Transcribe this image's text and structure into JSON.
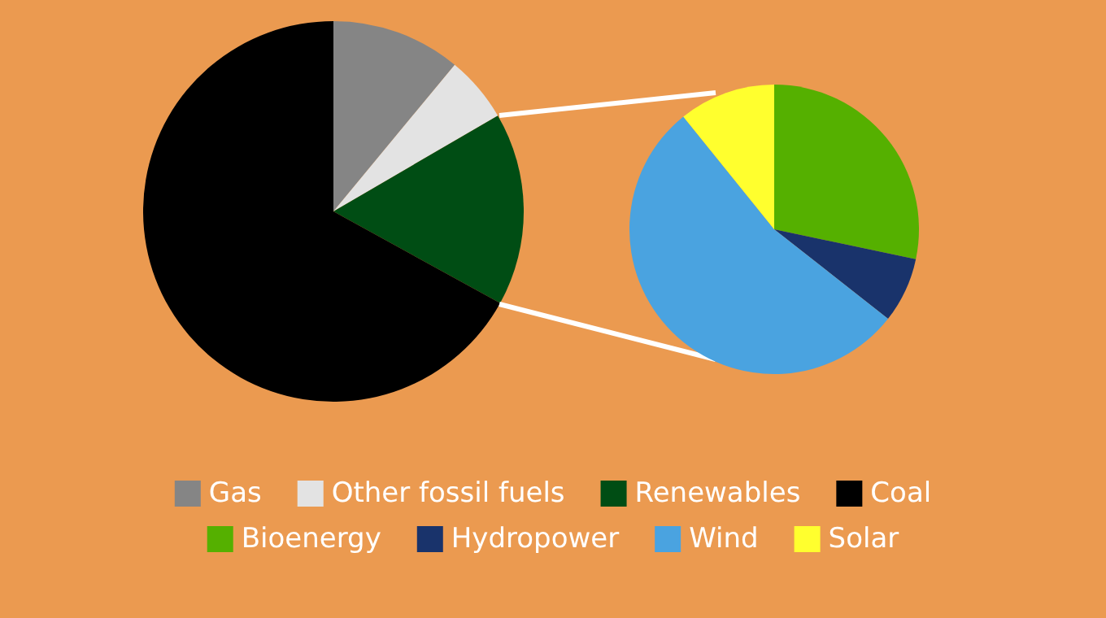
{
  "chart_data": [
    {
      "type": "pie",
      "categories": [
        "Gas",
        "Other fossil fuels",
        "Renewables",
        "Coal"
      ],
      "values": [
        11,
        5.6,
        16.4,
        67
      ],
      "colors": [
        "#858585",
        "#e3e3e3",
        "#004d14",
        "#000000"
      ],
      "legend": "bottom"
    },
    {
      "type": "pie",
      "categories": [
        "Bioenergy",
        "Hydropower",
        "Wind",
        "Solar"
      ],
      "values": [
        28.3,
        7.3,
        53.6,
        10.8
      ],
      "colors": [
        "#55b000",
        "#19336b",
        "#4aa3e0",
        "#ffff2e"
      ],
      "legend": "bottom"
    }
  ]
}
